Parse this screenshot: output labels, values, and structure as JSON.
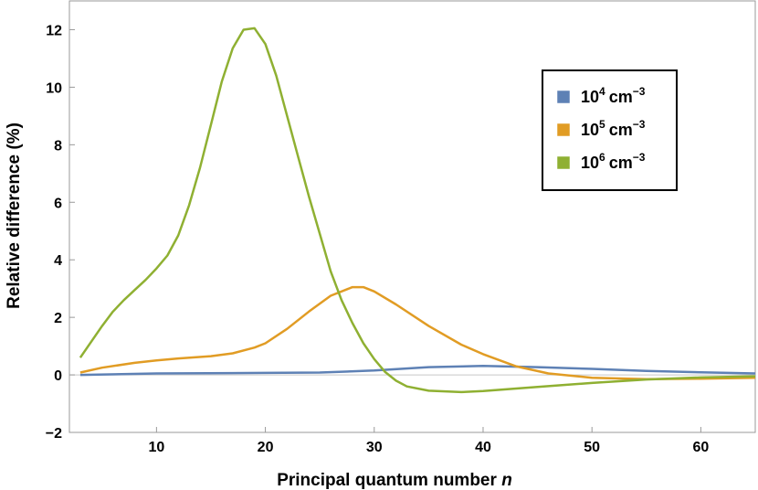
{
  "chart_data": {
    "type": "line",
    "title": "",
    "xlabel": "Principal quantum number",
    "xlabel_var": "n",
    "ylabel": "Relative difference (%)",
    "xlim": [
      2,
      65
    ],
    "ylim": [
      -2,
      13
    ],
    "xticks": [
      10,
      20,
      30,
      40,
      50,
      60
    ],
    "yticks": [
      -2,
      0,
      2,
      4,
      6,
      8,
      10,
      12
    ],
    "legend_position": "top-right",
    "series": [
      {
        "name_base": "10",
        "name_exp": "4",
        "name_unit": "cm",
        "name_unit_exp": "−3",
        "color": "#5e81b5",
        "x": [
          3,
          10,
          20,
          25,
          30,
          35,
          40,
          45,
          50,
          55,
          60,
          65
        ],
        "y": [
          0.0,
          0.05,
          0.07,
          0.08,
          0.15,
          0.27,
          0.31,
          0.27,
          0.21,
          0.14,
          0.09,
          0.05
        ]
      },
      {
        "name_base": "10",
        "name_exp": "5",
        "name_unit": "cm",
        "name_unit_exp": "−3",
        "color": "#e19c24",
        "x": [
          3,
          5,
          8,
          10,
          12,
          15,
          17,
          19,
          20,
          22,
          24,
          26,
          28,
          29,
          30,
          32,
          35,
          38,
          40,
          43,
          46,
          50,
          55,
          60,
          65
        ],
        "y": [
          0.08,
          0.25,
          0.42,
          0.5,
          0.57,
          0.65,
          0.75,
          0.95,
          1.1,
          1.6,
          2.2,
          2.75,
          3.05,
          3.05,
          2.9,
          2.45,
          1.7,
          1.05,
          0.72,
          0.3,
          0.05,
          -0.1,
          -0.15,
          -0.13,
          -0.1
        ]
      },
      {
        "name_base": "10",
        "name_exp": "6",
        "name_unit": "cm",
        "name_unit_exp": "−3",
        "color": "#8fb032",
        "x": [
          3,
          4,
          5,
          6,
          7,
          8,
          9,
          10,
          11,
          12,
          13,
          14,
          15,
          16,
          17,
          18,
          19,
          20,
          21,
          22,
          23,
          24,
          25,
          26,
          27,
          28,
          29,
          30,
          31,
          32,
          33,
          35,
          38,
          40,
          45,
          50,
          55,
          60,
          65
        ],
        "y": [
          0.6,
          1.15,
          1.7,
          2.2,
          2.6,
          2.95,
          3.3,
          3.7,
          4.15,
          4.85,
          5.9,
          7.2,
          8.7,
          10.2,
          11.35,
          12.0,
          12.05,
          11.5,
          10.4,
          9.0,
          7.6,
          6.2,
          4.9,
          3.6,
          2.6,
          1.8,
          1.1,
          0.55,
          0.1,
          -0.2,
          -0.4,
          -0.55,
          -0.6,
          -0.56,
          -0.42,
          -0.28,
          -0.16,
          -0.09,
          -0.05
        ]
      }
    ]
  }
}
